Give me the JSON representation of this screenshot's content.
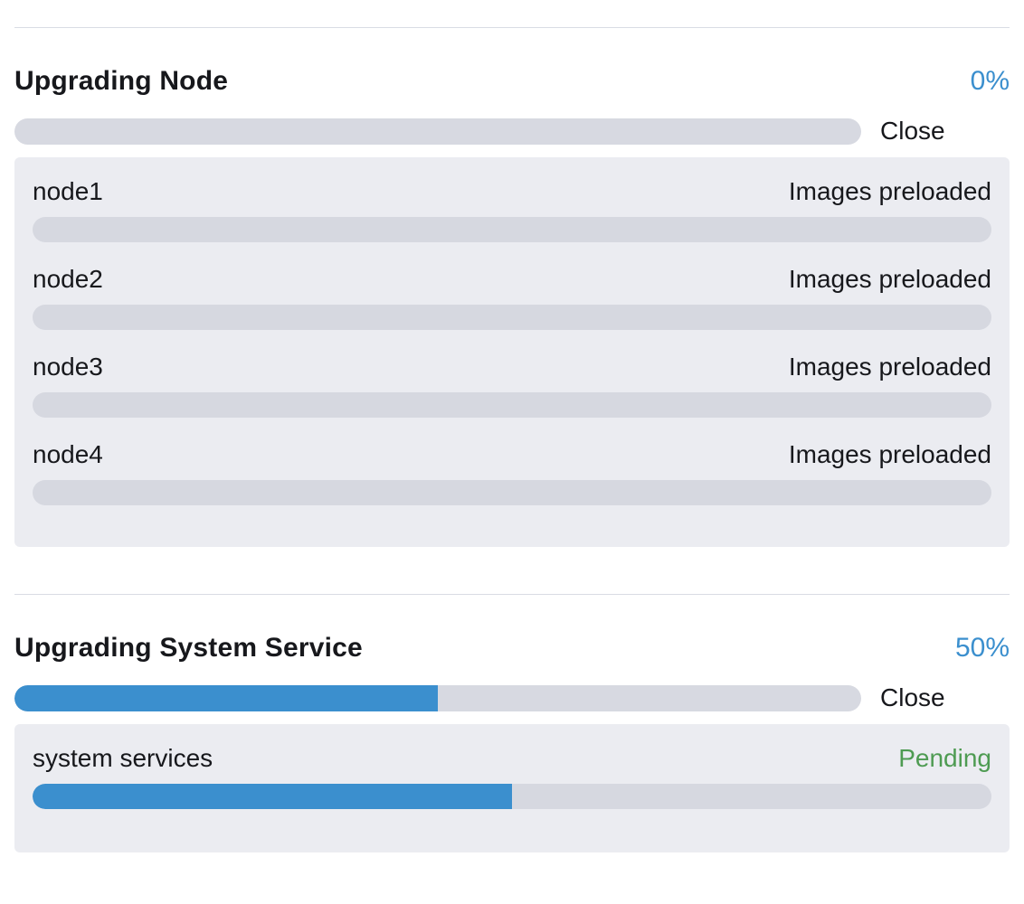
{
  "colors": {
    "accent_blue": "#3b8fce",
    "status_green": "#4e9b52",
    "track_gray": "#d6d8e0",
    "panel_gray": "#ebecf1"
  },
  "sections": [
    {
      "title": "Upgrading Node",
      "percent_label": "0%",
      "percent_value": 0,
      "close_label": "Close",
      "items": [
        {
          "name": "node1",
          "status": "Images preloaded",
          "progress": 0
        },
        {
          "name": "node2",
          "status": "Images preloaded",
          "progress": 0
        },
        {
          "name": "node3",
          "status": "Images preloaded",
          "progress": 0
        },
        {
          "name": "node4",
          "status": "Images preloaded",
          "progress": 0
        }
      ]
    },
    {
      "title": "Upgrading System Service",
      "percent_label": "50%",
      "percent_value": 50,
      "close_label": "Close",
      "items": [
        {
          "name": "system services",
          "status": "Pending",
          "progress": 50
        }
      ]
    }
  ]
}
